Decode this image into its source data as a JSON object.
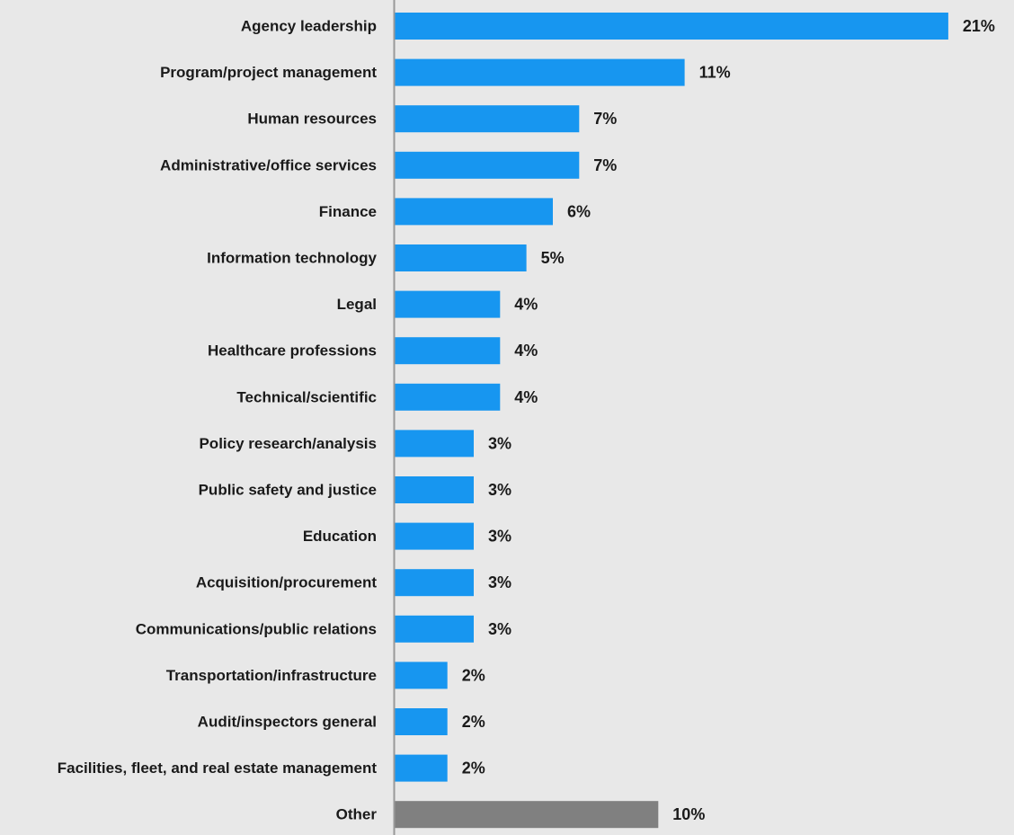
{
  "chart_data": {
    "type": "bar",
    "orientation": "horizontal",
    "title": "",
    "xlabel": "",
    "ylabel": "",
    "xlim": [
      0,
      21
    ],
    "grid": false,
    "legend": "none",
    "categories": [
      "Agency leadership",
      "Program/project management",
      "Human resources",
      "Administrative/office services",
      "Finance",
      "Information technology",
      "Legal",
      "Healthcare professions",
      "Technical/scientific",
      "Policy research/analysis",
      "Public safety and justice",
      "Education",
      "Acquisition/procurement",
      "Communications/public relations",
      "Transportation/infrastructure",
      "Audit/inspectors general",
      "Facilities, fleet, and real estate management",
      "Other"
    ],
    "values": [
      21,
      11,
      7,
      7,
      6,
      5,
      4,
      4,
      4,
      3,
      3,
      3,
      3,
      3,
      2,
      2,
      2,
      10
    ],
    "value_labels": [
      "21%",
      "11%",
      "7%",
      "7%",
      "6%",
      "5%",
      "4%",
      "4%",
      "4%",
      "3%",
      "3%",
      "3%",
      "3%",
      "3%",
      "2%",
      "2%",
      "2%",
      "10%"
    ],
    "bar_colors": [
      "#1796f0",
      "#1796f0",
      "#1796f0",
      "#1796f0",
      "#1796f0",
      "#1796f0",
      "#1796f0",
      "#1796f0",
      "#1796f0",
      "#1796f0",
      "#1796f0",
      "#1796f0",
      "#1796f0",
      "#1796f0",
      "#1796f0",
      "#1796f0",
      "#1796f0",
      "#808080"
    ],
    "colors": {
      "primary": "#1796f0",
      "other": "#808080",
      "background": "#e8e8e8",
      "axis": "#999999"
    }
  }
}
